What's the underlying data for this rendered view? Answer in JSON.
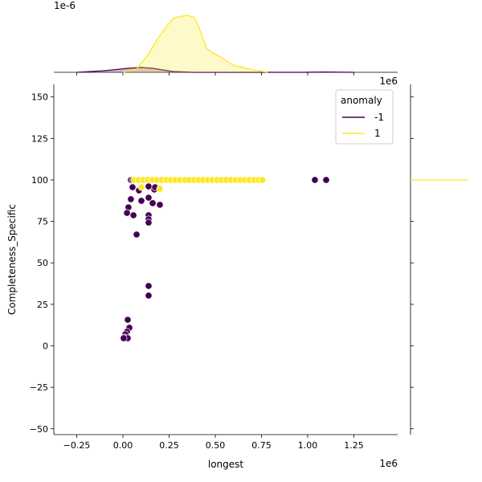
{
  "chart_data": {
    "type": "scatter",
    "xlabel": "longest",
    "ylabel": "Completeness_Specific",
    "x_offset_label": "1e6",
    "top_offset_label": "1e-6",
    "xlim": [
      -0.374,
      1.487
    ],
    "ylim": [
      -53.5,
      157.6
    ],
    "xticks": [
      -0.25,
      0.0,
      0.25,
      0.5,
      0.75,
      1.0,
      1.25
    ],
    "xtick_labels": [
      "−0.25",
      "0.00",
      "0.25",
      "0.50",
      "0.75",
      "1.00",
      "1.25"
    ],
    "yticks": [
      -50,
      -25,
      0,
      25,
      50,
      75,
      100,
      125,
      150
    ],
    "ytick_labels": [
      "−50",
      "−25",
      "0",
      "25",
      "50",
      "75",
      "100",
      "125",
      "150"
    ],
    "legend": {
      "title": "anomaly",
      "placement": "top-right",
      "entries": [
        {
          "label": "-1",
          "color": "#440154"
        },
        {
          "label": "1",
          "color": "#fde725"
        }
      ]
    },
    "series": [
      {
        "name": "-1",
        "color": "#440154",
        "points": [
          [
            0.043,
            100
          ],
          [
            0.052,
            100
          ],
          [
            1.039,
            100
          ],
          [
            1.1,
            100
          ],
          [
            0.052,
            95.6
          ],
          [
            0.087,
            93.7
          ],
          [
            0.043,
            88.4
          ],
          [
            0.03,
            83.5
          ],
          [
            0.022,
            80.1
          ],
          [
            0.057,
            78.7
          ],
          [
            0.074,
            67.1
          ],
          [
            0.139,
            96.1
          ],
          [
            0.17,
            94.2
          ],
          [
            0.174,
            95.6
          ],
          [
            0.139,
            89.3
          ],
          [
            0.161,
            86
          ],
          [
            0.2,
            85
          ],
          [
            0.1,
            87.4
          ],
          [
            0.139,
            78.7
          ],
          [
            0.139,
            76.3
          ],
          [
            0.139,
            74.3
          ],
          [
            0.139,
            36.1
          ],
          [
            0.139,
            30.3
          ],
          [
            0.026,
            15.7
          ],
          [
            0.035,
            10.9
          ],
          [
            0.022,
            8.5
          ],
          [
            0.013,
            7
          ],
          [
            0.009,
            5.1
          ],
          [
            0.017,
            4.6
          ],
          [
            0.026,
            4.6
          ],
          [
            0.004,
            4.6
          ]
        ],
        "kde_x": [
          [
            -0.25,
            0
          ],
          [
            -0.1,
            0.1
          ],
          [
            0.03,
            0.25
          ],
          [
            0.1,
            0.3
          ],
          [
            0.16,
            0.25
          ],
          [
            0.27,
            0.05
          ],
          [
            0.38,
            0
          ],
          [
            0.98,
            0
          ],
          [
            1.1,
            0.02
          ],
          [
            1.25,
            0
          ]
        ]
      },
      {
        "name": "1",
        "color": "#fde725",
        "points": [
          [
            0.06,
            100
          ],
          [
            0.085,
            100
          ],
          [
            0.11,
            100
          ],
          [
            0.135,
            100
          ],
          [
            0.16,
            100
          ],
          [
            0.185,
            100
          ],
          [
            0.21,
            100
          ],
          [
            0.235,
            100
          ],
          [
            0.26,
            100
          ],
          [
            0.285,
            100
          ],
          [
            0.31,
            100
          ],
          [
            0.335,
            100
          ],
          [
            0.36,
            100
          ],
          [
            0.385,
            100
          ],
          [
            0.41,
            100
          ],
          [
            0.435,
            100
          ],
          [
            0.46,
            100
          ],
          [
            0.485,
            100
          ],
          [
            0.51,
            100
          ],
          [
            0.535,
            100
          ],
          [
            0.56,
            100
          ],
          [
            0.585,
            100
          ],
          [
            0.61,
            100
          ],
          [
            0.635,
            100
          ],
          [
            0.66,
            100
          ],
          [
            0.685,
            100
          ],
          [
            0.71,
            100
          ],
          [
            0.735,
            100
          ],
          [
            0.755,
            100
          ],
          [
            0.1,
            95.6
          ],
          [
            0.2,
            94.7
          ]
        ],
        "kde_x": [
          [
            0.0,
            0
          ],
          [
            0.074,
            0.2
          ],
          [
            0.13,
            1.0
          ],
          [
            0.183,
            2.0
          ],
          [
            0.235,
            2.85
          ],
          [
            0.278,
            3.4
          ],
          [
            0.348,
            3.55
          ],
          [
            0.387,
            3.4
          ],
          [
            0.422,
            2.5
          ],
          [
            0.452,
            1.5
          ],
          [
            0.487,
            1.2
          ],
          [
            0.522,
            1.0
          ],
          [
            0.596,
            0.45
          ],
          [
            0.683,
            0.2
          ],
          [
            0.783,
            0
          ]
        ]
      }
    ],
    "top_marginal_ylim": [
      0,
      3.75
    ]
  }
}
